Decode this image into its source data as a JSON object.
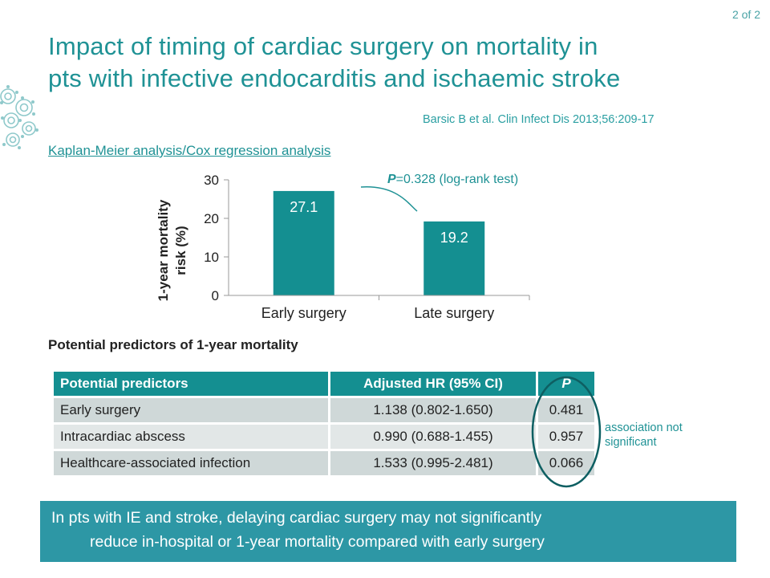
{
  "page_indicator": "2 of 2",
  "title_line1": "Impact of timing of cardiac surgery on mortality in",
  "title_line2": "pts with infective endocarditis and ischaemic stroke",
  "citation": "Barsic B et al. Clin Infect Dis 2013;56:209-17",
  "analysis_link": "Kaplan-Meier analysis/Cox regression analysis",
  "chart_data": {
    "type": "bar",
    "categories": [
      "Early surgery",
      "Late surgery"
    ],
    "values": [
      27.1,
      19.2
    ],
    "value_labels": [
      "27.1",
      "19.2"
    ],
    "ylabel": "1-year mortality risk (%)",
    "ylabel_line1": "1-year mortality",
    "ylabel_line2": "risk (%)",
    "ylim": [
      0,
      30
    ],
    "yticks": [
      0,
      10,
      20,
      30
    ],
    "ytick_labels": [
      "0",
      "10",
      "20",
      "30"
    ],
    "annotation_p": "P",
    "annotation_rest": "=0.328 (log-rank test)",
    "bar_color": "#148f91",
    "grid": false
  },
  "predictors_heading": "Potential predictors of 1-year mortality",
  "table": {
    "headers": [
      "Potential predictors",
      "Adjusted HR (95% CI)",
      "P"
    ],
    "rows": [
      [
        "Early surgery",
        "1.138 (0.802-1.650)",
        "0.481"
      ],
      [
        "Intracardiac abscess",
        "0.990 (0.688-1.455)",
        "0.957"
      ],
      [
        "Healthcare-associated infection",
        "1.533 (0.995-2.481)",
        "0.066"
      ]
    ]
  },
  "not_significant_line1": "association not",
  "not_significant_line2": "significant",
  "conclusion_line1": "In pts with IE and stroke, delaying cardiac surgery may not significantly",
  "conclusion_line2": "reduce in-hospital or 1-year mortality compared with early surgery",
  "colors": {
    "accent": "#1f9295",
    "header": "#148f91",
    "conclusion_bg": "#2d97a5"
  }
}
